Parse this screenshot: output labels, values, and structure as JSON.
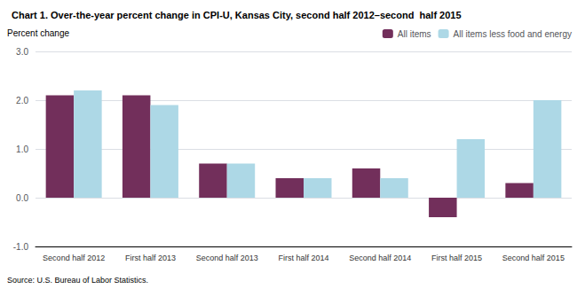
{
  "chart_data": {
    "type": "bar",
    "title": "Chart 1. Over-the-year percent change in CPI-U, Kansas City, second half 2012–second  half 2015",
    "ylabel": "Percent change",
    "source": "Source: U.S. Bureau of Labor Statistics.",
    "categories": [
      "Second half 2012",
      "First half 2013",
      "Second half 2013",
      "First half 2014",
      "Second half 2014",
      "First half 2015",
      "Second half 2015"
    ],
    "series": [
      {
        "name": "All items",
        "color": "#722F5B",
        "values": [
          2.1,
          2.1,
          0.7,
          0.4,
          0.6,
          -0.4,
          0.3
        ]
      },
      {
        "name": "All items less food and energy",
        "color": "#ADD8E6",
        "values": [
          2.2,
          1.9,
          0.7,
          0.4,
          0.4,
          1.2,
          2.0
        ]
      }
    ],
    "ylim": [
      -1.0,
      3.0
    ],
    "yticks": [
      {
        "value": -1.0,
        "label": "-1.0"
      },
      {
        "value": 0.0,
        "label": "0.0"
      },
      {
        "value": 1.0,
        "label": "1.0"
      },
      {
        "value": 2.0,
        "label": "2.0"
      },
      {
        "value": 3.0,
        "label": "3.0"
      }
    ],
    "grid": true,
    "legend": "upper right"
  }
}
